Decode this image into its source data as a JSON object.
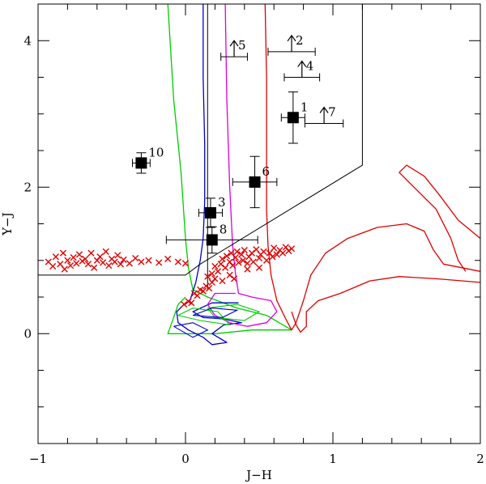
{
  "chart_data": {
    "type": "scatter",
    "title": "",
    "xlabel": "J−H",
    "ylabel": "Y−J",
    "xlim": [
      -1,
      2
    ],
    "ylim": [
      -1.5,
      4.5
    ],
    "grid": false,
    "x_ticks": [
      {
        "value": -1,
        "label": "−1"
      },
      {
        "value": 0,
        "label": "0"
      },
      {
        "value": 1,
        "label": "1"
      },
      {
        "value": 2,
        "label": "2"
      }
    ],
    "y_ticks": [
      {
        "value": 0,
        "label": "0"
      },
      {
        "value": 2,
        "label": "2"
      },
      {
        "value": 4,
        "label": "4"
      }
    ],
    "x_minor_step": 0.2,
    "y_minor_step": 0.5,
    "colors": {
      "green": "#00cc00",
      "blue": "#0000cc",
      "magenta": "#dd00dd",
      "red": "#dd0000",
      "black": "#000000"
    },
    "detections": [
      {
        "label": "1",
        "x": 0.73,
        "y": 2.95,
        "xerr": 0.08,
        "yerr": 0.35
      },
      {
        "label": "3",
        "x": 0.17,
        "y": 1.65,
        "xerr": 0.08,
        "yerr": 0.2
      },
      {
        "label": "6",
        "x": 0.47,
        "y": 2.07,
        "xerr": 0.15,
        "yerr": 0.35
      },
      {
        "label": "8",
        "x": 0.18,
        "y": 1.28,
        "xerr": 0.31,
        "yerr": 0.18
      },
      {
        "label": "10",
        "x": -0.3,
        "y": 2.33,
        "xerr": 0.06,
        "yerr": 0.14
      }
    ],
    "lower_limits": [
      {
        "label": "2",
        "x": 0.72,
        "y": 3.85,
        "xerr": 0.16
      },
      {
        "label": "4",
        "x": 0.79,
        "y": 3.5,
        "xerr": 0.12
      },
      {
        "label": "5",
        "x": 0.33,
        "y": 3.78,
        "xerr": 0.09
      },
      {
        "label": "7",
        "x": 0.94,
        "y": 2.87,
        "xerr": 0.13
      }
    ],
    "selection_boundary": [
      [
        -1.0,
        0.8
      ],
      [
        0.0,
        0.8
      ],
      [
        0.1,
        0.95
      ],
      [
        1.2,
        2.3
      ],
      [
        1.2,
        4.5
      ]
    ],
    "selection_vertical": [
      [
        0.15,
        0.6
      ],
      [
        0.15,
        4.5
      ]
    ],
    "green_track": [
      [
        -0.12,
        4.5
      ],
      [
        -0.08,
        3.2
      ],
      [
        -0.03,
        2.2
      ],
      [
        0.0,
        1.3
      ],
      [
        0.02,
        0.9
      ],
      [
        0.05,
        0.6
      ],
      [
        0.15,
        0.5
      ],
      [
        0.35,
        0.35
      ],
      [
        0.55,
        0.25
      ],
      [
        0.72,
        0.05
      ],
      [
        0.45,
        0.05
      ],
      [
        0.2,
        0.0
      ],
      [
        -0.12,
        0.0
      ],
      [
        -0.08,
        0.22
      ],
      [
        -0.05,
        0.4
      ],
      [
        0.0,
        0.5
      ]
    ],
    "green_loops": [
      [
        [
          -0.05,
          0.25
        ],
        [
          0.1,
          0.18
        ],
        [
          0.3,
          0.12
        ],
        [
          0.22,
          0.3
        ],
        [
          0.05,
          0.35
        ],
        [
          -0.05,
          0.25
        ]
      ],
      [
        [
          0.15,
          0.35
        ],
        [
          0.35,
          0.4
        ],
        [
          0.5,
          0.3
        ],
        [
          0.4,
          0.18
        ],
        [
          0.2,
          0.22
        ],
        [
          0.15,
          0.35
        ]
      ]
    ],
    "blue_track": [
      [
        0.12,
        4.5
      ],
      [
        0.12,
        3.5
      ],
      [
        0.13,
        2.6
      ],
      [
        0.13,
        1.8
      ],
      [
        0.12,
        1.3
      ],
      [
        0.1,
        1.0
      ],
      [
        0.07,
        0.7
      ],
      [
        0.03,
        0.45
      ],
      [
        -0.02,
        0.38
      ],
      [
        -0.06,
        0.3
      ],
      [
        -0.05,
        0.15
      ],
      [
        0.02,
        0.05
      ],
      [
        0.12,
        -0.05
      ],
      [
        0.18,
        -0.15
      ],
      [
        0.28,
        -0.12
      ],
      [
        0.18,
        0.0
      ],
      [
        0.26,
        0.12
      ],
      [
        0.38,
        0.15
      ],
      [
        0.26,
        0.2
      ],
      [
        0.12,
        0.22
      ],
      [
        0.05,
        0.3
      ],
      [
        0.18,
        0.42
      ],
      [
        0.36,
        0.42
      ]
    ],
    "blue_loops": [
      [
        [
          -0.08,
          0.1
        ],
        [
          0.05,
          -0.05
        ],
        [
          0.15,
          0.05
        ],
        [
          0.05,
          0.15
        ],
        [
          -0.08,
          0.1
        ]
      ],
      [
        [
          0.05,
          0.25
        ],
        [
          0.25,
          0.22
        ],
        [
          0.35,
          0.32
        ],
        [
          0.18,
          0.35
        ],
        [
          0.05,
          0.25
        ]
      ]
    ],
    "magenta_track": [
      [
        0.27,
        4.5
      ],
      [
        0.28,
        3.2
      ],
      [
        0.3,
        2.0
      ],
      [
        0.32,
        1.2
      ],
      [
        0.34,
        0.8
      ],
      [
        0.36,
        0.55
      ],
      [
        0.45,
        0.5
      ],
      [
        0.58,
        0.45
      ],
      [
        0.62,
        0.3
      ],
      [
        0.55,
        0.15
      ],
      [
        0.42,
        0.1
      ],
      [
        0.3,
        0.15
      ],
      [
        0.2,
        0.25
      ],
      [
        0.15,
        0.4
      ],
      [
        0.2,
        0.55
      ],
      [
        0.34,
        0.55
      ]
    ],
    "red_track": [
      [
        0.54,
        4.5
      ],
      [
        0.55,
        3.5
      ],
      [
        0.55,
        2.5
      ],
      [
        0.55,
        1.7
      ],
      [
        0.56,
        1.2
      ],
      [
        0.58,
        0.8
      ],
      [
        0.62,
        0.45
      ],
      [
        0.68,
        0.2
      ],
      [
        0.72,
        0.05
      ],
      [
        0.75,
        0.15
      ],
      [
        0.8,
        0.45
      ],
      [
        0.85,
        0.8
      ],
      [
        0.95,
        1.1
      ],
      [
        1.1,
        1.3
      ],
      [
        1.3,
        1.45
      ],
      [
        1.5,
        1.5
      ],
      [
        1.62,
        1.4
      ],
      [
        1.68,
        1.15
      ],
      [
        1.75,
        0.95
      ],
      [
        2.0,
        0.85
      ]
    ],
    "red_loop_lower": [
      [
        2.0,
        0.7
      ],
      [
        1.7,
        0.75
      ],
      [
        1.45,
        0.78
      ],
      [
        1.25,
        0.72
      ],
      [
        1.05,
        0.55
      ],
      [
        0.9,
        0.45
      ],
      [
        0.82,
        0.3
      ],
      [
        0.82,
        0.1
      ],
      [
        0.78,
        0.02
      ],
      [
        0.75,
        0.12
      ],
      [
        0.72,
        0.3
      ]
    ],
    "red_loop_upper": [
      [
        2.0,
        1.3
      ],
      [
        1.85,
        1.55
      ],
      [
        1.72,
        1.9
      ],
      [
        1.62,
        2.15
      ],
      [
        1.5,
        2.3
      ],
      [
        1.45,
        2.2
      ],
      [
        1.55,
        2.0
      ],
      [
        1.7,
        1.7
      ],
      [
        1.8,
        1.3
      ],
      [
        1.85,
        1.0
      ],
      [
        1.9,
        0.85
      ]
    ],
    "crosses": [
      [
        -0.93,
        0.98
      ],
      [
        -0.9,
        0.92
      ],
      [
        -0.88,
        1.05
      ],
      [
        -0.85,
        0.95
      ],
      [
        -0.83,
        1.1
      ],
      [
        -0.82,
        0.88
      ],
      [
        -0.8,
        1.0
      ],
      [
        -0.78,
        0.93
      ],
      [
        -0.76,
        1.04
      ],
      [
        -0.74,
        0.96
      ],
      [
        -0.72,
        1.08
      ],
      [
        -0.7,
        0.99
      ],
      [
        -0.68,
        1.02
      ],
      [
        -0.66,
        0.95
      ],
      [
        -0.64,
        1.1
      ],
      [
        -0.62,
        0.9
      ],
      [
        -0.6,
        1.0
      ],
      [
        -0.58,
        1.05
      ],
      [
        -0.56,
        0.97
      ],
      [
        -0.54,
        1.12
      ],
      [
        -0.52,
        0.93
      ],
      [
        -0.5,
        1.02
      ],
      [
        -0.48,
        0.98
      ],
      [
        -0.46,
        1.07
      ],
      [
        -0.44,
        0.95
      ],
      [
        -0.42,
        1.01
      ],
      [
        -0.38,
        0.96
      ],
      [
        -0.34,
        1.03
      ],
      [
        -0.3,
        0.98
      ],
      [
        -0.25,
        1.0
      ],
      [
        -0.18,
        0.97
      ],
      [
        -0.12,
        1.02
      ],
      [
        -0.05,
        0.98
      ],
      [
        0.0,
        0.96
      ],
      [
        0.02,
        0.44
      ],
      [
        -0.01,
        0.4
      ],
      [
        0.04,
        0.42
      ],
      [
        0.06,
        0.55
      ],
      [
        0.08,
        0.52
      ],
      [
        0.1,
        0.6
      ],
      [
        0.12,
        0.58
      ],
      [
        0.14,
        0.65
      ],
      [
        0.16,
        0.62
      ],
      [
        0.18,
        0.7
      ],
      [
        0.2,
        0.75
      ],
      [
        0.2,
        0.92
      ],
      [
        0.22,
        0.85
      ],
      [
        0.24,
        0.95
      ],
      [
        0.25,
        1.02
      ],
      [
        0.27,
        0.9
      ],
      [
        0.28,
        1.06
      ],
      [
        0.3,
        0.98
      ],
      [
        0.31,
        1.1
      ],
      [
        0.32,
        0.93
      ],
      [
        0.34,
        1.04
      ],
      [
        0.35,
        1.12
      ],
      [
        0.36,
        0.97
      ],
      [
        0.38,
        1.08
      ],
      [
        0.39,
        1.0
      ],
      [
        0.4,
        1.14
      ],
      [
        0.42,
        0.96
      ],
      [
        0.43,
        1.05
      ],
      [
        0.45,
        1.1
      ],
      [
        0.46,
        0.98
      ],
      [
        0.48,
        1.15
      ],
      [
        0.5,
        1.03
      ],
      [
        0.51,
        1.08
      ],
      [
        0.53,
        1.12
      ],
      [
        0.55,
        1.0
      ],
      [
        0.57,
        1.1
      ],
      [
        0.59,
        1.05
      ],
      [
        0.6,
        1.17
      ],
      [
        0.62,
        1.08
      ],
      [
        0.64,
        1.14
      ],
      [
        0.66,
        1.1
      ],
      [
        0.68,
        1.18
      ],
      [
        0.7,
        1.13
      ],
      [
        0.72,
        1.16
      ],
      [
        0.25,
        0.72
      ],
      [
        0.3,
        0.8
      ],
      [
        0.33,
        0.75
      ],
      [
        0.42,
        0.88
      ],
      [
        0.5,
        0.9
      ],
      [
        0.18,
        0.82
      ],
      [
        0.15,
        0.78
      ]
    ]
  }
}
